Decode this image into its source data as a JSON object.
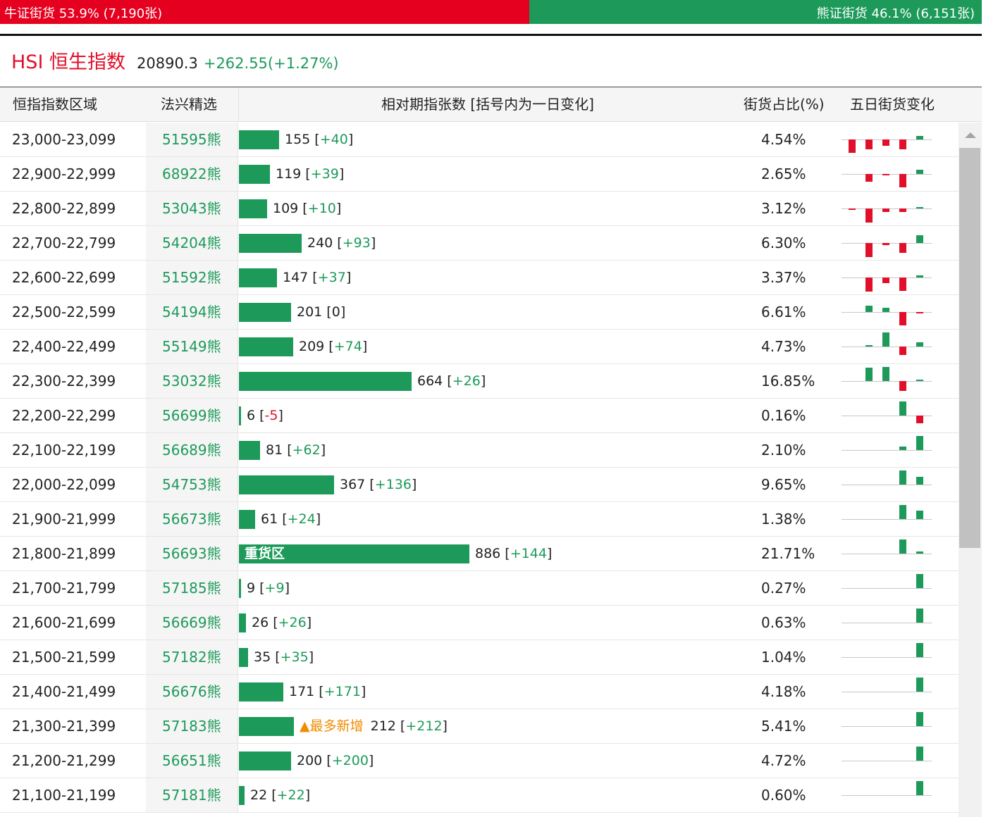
{
  "ratio": {
    "bull_text": "牛证街货 53.9% (7,190张)",
    "bear_text": "熊证街货 46.1% (6,151张)",
    "bull_share": 0.539,
    "bull_color": "#e6001f",
    "bear_color": "#1d9a5a"
  },
  "index": {
    "name": "HSI 恒生指数",
    "value": "20890.3",
    "change": "+262.55(+1.27%)"
  },
  "table": {
    "headers": {
      "range": "恒指指数区域",
      "pick": "法兴精选",
      "bars": "相对期指张数 [括号内为一日变化]",
      "pct": "街货占比(%)",
      "five": "五日街货变化"
    },
    "rows": [
      {
        "range": "23,000-23,099",
        "pick": "51595熊",
        "count": "155",
        "change": "+40",
        "change_dir": "up",
        "pct": "4.54%",
        "five": [
          -0.6,
          -0.45,
          -0.3,
          -0.45,
          0.15
        ]
      },
      {
        "range": "22,900-22,999",
        "pick": "68922熊",
        "count": "119",
        "change": "+39",
        "change_dir": "up",
        "pct": "2.65%",
        "five": [
          0,
          -0.35,
          -0.05,
          -0.6,
          0.2
        ]
      },
      {
        "range": "22,800-22,899",
        "pick": "53043熊",
        "count": "109",
        "change": "+10",
        "change_dir": "up",
        "pct": "3.12%",
        "five": [
          -0.05,
          -0.65,
          -0.15,
          -0.15,
          0.05
        ]
      },
      {
        "range": "22,700-22,799",
        "pick": "54204熊",
        "count": "240",
        "change": "+93",
        "change_dir": "up",
        "pct": "6.30%",
        "five": [
          0,
          -0.65,
          -0.1,
          -0.45,
          0.35
        ]
      },
      {
        "range": "22,600-22,699",
        "pick": "51592熊",
        "count": "147",
        "change": "+37",
        "change_dir": "up",
        "pct": "3.37%",
        "five": [
          0,
          -0.65,
          -0.25,
          -0.6,
          0.1
        ]
      },
      {
        "range": "22,500-22,599",
        "pick": "54194熊",
        "count": "201",
        "change": "0",
        "change_dir": "flat",
        "pct": "6.61%",
        "five": [
          0,
          0.3,
          0.2,
          -0.6,
          -0.05
        ]
      },
      {
        "range": "22,400-22,499",
        "pick": "55149熊",
        "count": "209",
        "change": "+74",
        "change_dir": "up",
        "pct": "4.73%",
        "five": [
          0,
          0.05,
          0.65,
          -0.4,
          0.2
        ]
      },
      {
        "range": "22,300-22,399",
        "pick": "53032熊",
        "count": "664",
        "change": "+26",
        "change_dir": "up",
        "pct": "16.85%",
        "five": [
          0,
          0.6,
          0.65,
          -0.45,
          0.05
        ]
      },
      {
        "range": "22,200-22,299",
        "pick": "56699熊",
        "count": "6",
        "change": "-5",
        "change_dir": "down",
        "pct": "0.16%",
        "five": [
          0,
          0,
          0,
          0.65,
          -0.35
        ]
      },
      {
        "range": "22,100-22,199",
        "pick": "56689熊",
        "count": "81",
        "change": "+62",
        "change_dir": "up",
        "pct": "2.10%",
        "five": [
          0,
          0,
          0,
          0.15,
          0.65
        ]
      },
      {
        "range": "22,000-22,099",
        "pick": "54753熊",
        "count": "367",
        "change": "+136",
        "change_dir": "up",
        "pct": "9.65%",
        "five": [
          0,
          0,
          0,
          0.65,
          0.35
        ]
      },
      {
        "range": "21,900-21,999",
        "pick": "56673熊",
        "count": "61",
        "change": "+24",
        "change_dir": "up",
        "pct": "1.38%",
        "five": [
          0,
          0,
          0,
          0.65,
          0.4
        ]
      },
      {
        "range": "21,800-21,899",
        "pick": "56693熊",
        "count": "886",
        "change": "+144",
        "change_dir": "up",
        "pct": "21.71%",
        "five": [
          0,
          0,
          0,
          0.65,
          0.1
        ],
        "bar_label": "重货区"
      },
      {
        "range": "21,700-21,799",
        "pick": "57185熊",
        "count": "9",
        "change": "+9",
        "change_dir": "up",
        "pct": "0.27%",
        "five": [
          0,
          0,
          0,
          0,
          0.65
        ]
      },
      {
        "range": "21,600-21,699",
        "pick": "56669熊",
        "count": "26",
        "change": "+26",
        "change_dir": "up",
        "pct": "0.63%",
        "five": [
          0,
          0,
          0,
          0,
          0.65
        ]
      },
      {
        "range": "21,500-21,599",
        "pick": "57182熊",
        "count": "35",
        "change": "+35",
        "change_dir": "up",
        "pct": "1.04%",
        "five": [
          0,
          0,
          0,
          0,
          0.65
        ]
      },
      {
        "range": "21,400-21,499",
        "pick": "56676熊",
        "count": "171",
        "change": "+171",
        "change_dir": "up",
        "pct": "4.18%",
        "five": [
          0,
          0,
          0,
          0,
          0.65
        ]
      },
      {
        "range": "21,300-21,399",
        "pick": "57183熊",
        "count": "212",
        "change": "+212",
        "change_dir": "up",
        "pct": "5.41%",
        "five": [
          0,
          0,
          0,
          0,
          0.65
        ],
        "tag": "▲最多新增"
      },
      {
        "range": "21,200-21,299",
        "pick": "56651熊",
        "count": "200",
        "change": "+200",
        "change_dir": "up",
        "pct": "4.72%",
        "five": [
          0,
          0,
          0,
          0,
          0.65
        ]
      },
      {
        "range": "21,100-21,199",
        "pick": "57181熊",
        "count": "22",
        "change": "+22",
        "change_dir": "up",
        "pct": "0.60%",
        "five": [
          0,
          0,
          0,
          0,
          0.65
        ]
      }
    ]
  },
  "colors": {
    "up": "#1d9a5a",
    "down": "#e0102a",
    "new_tag": "#f08c00"
  }
}
